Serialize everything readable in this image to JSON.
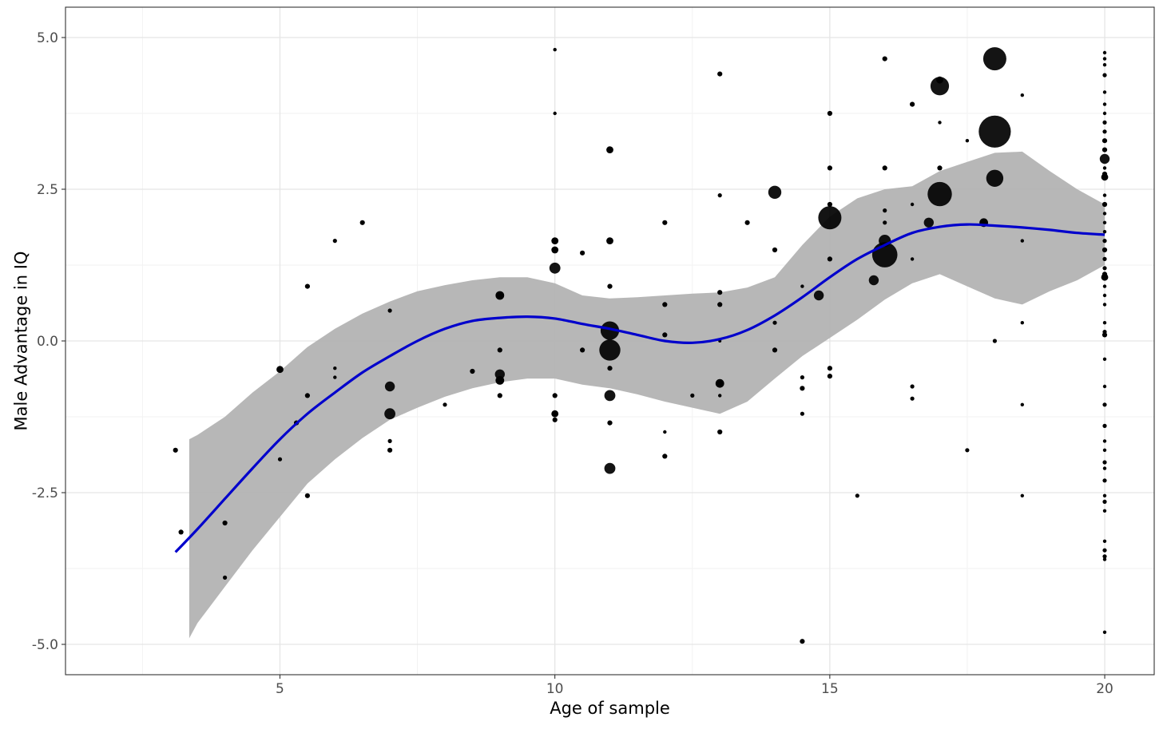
{
  "chart_data": {
    "type": "scatter",
    "title": "",
    "xlabel": "Age of sample",
    "ylabel": "Male Advantage in IQ",
    "xlim": [
      1.1,
      20.9
    ],
    "ylim": [
      -5.5,
      5.5
    ],
    "grid": true,
    "x_ticks": [
      {
        "value": 5,
        "label": "5"
      },
      {
        "value": 10,
        "label": "10"
      },
      {
        "value": 15,
        "label": "15"
      },
      {
        "value": 20,
        "label": "20"
      }
    ],
    "y_ticks": [
      {
        "value": -5,
        "label": "-5.0"
      },
      {
        "value": -2.5,
        "label": "-2.5"
      },
      {
        "value": 0,
        "label": "0.0"
      },
      {
        "value": 2.5,
        "label": "2.5"
      },
      {
        "value": 5,
        "label": "5.0"
      }
    ],
    "colors": {
      "points": "#000000",
      "smooth_line": "#0000cc",
      "confidence_band": "#b3b3b3",
      "grid_major": "#e5e5e5",
      "grid_minor": "#f2f2f2"
    },
    "points": [
      {
        "x": 3.1,
        "y": -1.8,
        "size": 1
      },
      {
        "x": 3.2,
        "y": -3.15,
        "size": 1
      },
      {
        "x": 4.0,
        "y": -3.0,
        "size": 1
      },
      {
        "x": 4.0,
        "y": -3.9,
        "size": 0.7
      },
      {
        "x": 5.0,
        "y": -0.47,
        "size": 2
      },
      {
        "x": 5.0,
        "y": -1.95,
        "size": 0.7
      },
      {
        "x": 5.3,
        "y": -1.35,
        "size": 1
      },
      {
        "x": 5.5,
        "y": 0.9,
        "size": 1
      },
      {
        "x": 5.5,
        "y": -0.9,
        "size": 1
      },
      {
        "x": 5.5,
        "y": -2.55,
        "size": 1
      },
      {
        "x": 6.0,
        "y": 1.65,
        "size": 0.7
      },
      {
        "x": 6.0,
        "y": -0.45,
        "size": 0.5
      },
      {
        "x": 6.0,
        "y": -0.6,
        "size": 0.5
      },
      {
        "x": 6.5,
        "y": 1.95,
        "size": 1
      },
      {
        "x": 7.0,
        "y": 0.5,
        "size": 0.7
      },
      {
        "x": 7.0,
        "y": -0.75,
        "size": 4
      },
      {
        "x": 7.0,
        "y": -1.2,
        "size": 5
      },
      {
        "x": 7.0,
        "y": -1.65,
        "size": 0.7
      },
      {
        "x": 7.0,
        "y": -1.8,
        "size": 1
      },
      {
        "x": 8.0,
        "y": -1.05,
        "size": 0.7
      },
      {
        "x": 8.5,
        "y": -0.5,
        "size": 1
      },
      {
        "x": 9.0,
        "y": 0.75,
        "size": 3
      },
      {
        "x": 9.0,
        "y": -0.15,
        "size": 1
      },
      {
        "x": 9.0,
        "y": -0.55,
        "size": 4
      },
      {
        "x": 9.0,
        "y": -0.65,
        "size": 3
      },
      {
        "x": 9.0,
        "y": -0.9,
        "size": 1
      },
      {
        "x": 10.0,
        "y": 4.8,
        "size": 0.5
      },
      {
        "x": 10.0,
        "y": 3.75,
        "size": 0.5
      },
      {
        "x": 10.0,
        "y": 1.65,
        "size": 2
      },
      {
        "x": 10.0,
        "y": 1.5,
        "size": 2
      },
      {
        "x": 10.0,
        "y": 1.2,
        "size": 5
      },
      {
        "x": 10.0,
        "y": -0.9,
        "size": 1
      },
      {
        "x": 10.0,
        "y": -1.2,
        "size": 2
      },
      {
        "x": 10.0,
        "y": -1.3,
        "size": 1
      },
      {
        "x": 10.5,
        "y": 1.45,
        "size": 1
      },
      {
        "x": 10.5,
        "y": -0.15,
        "size": 1
      },
      {
        "x": 11.0,
        "y": 3.15,
        "size": 2
      },
      {
        "x": 11.0,
        "y": 1.65,
        "size": 2
      },
      {
        "x": 11.0,
        "y": 0.9,
        "size": 1
      },
      {
        "x": 11.0,
        "y": 0.17,
        "size": 14
      },
      {
        "x": 11.0,
        "y": -0.15,
        "size": 18
      },
      {
        "x": 11.0,
        "y": -0.45,
        "size": 1
      },
      {
        "x": 11.0,
        "y": -0.9,
        "size": 5
      },
      {
        "x": 11.0,
        "y": -1.35,
        "size": 1
      },
      {
        "x": 11.0,
        "y": -2.1,
        "size": 5
      },
      {
        "x": 12.0,
        "y": 1.95,
        "size": 1
      },
      {
        "x": 12.0,
        "y": 0.6,
        "size": 1
      },
      {
        "x": 12.0,
        "y": 0.1,
        "size": 1
      },
      {
        "x": 12.0,
        "y": -1.5,
        "size": 0.5
      },
      {
        "x": 12.0,
        "y": -1.9,
        "size": 1
      },
      {
        "x": 12.5,
        "y": -0.9,
        "size": 0.7
      },
      {
        "x": 13.0,
        "y": 4.4,
        "size": 1
      },
      {
        "x": 13.0,
        "y": 2.4,
        "size": 0.7
      },
      {
        "x": 13.0,
        "y": 0.8,
        "size": 1
      },
      {
        "x": 13.0,
        "y": 0.6,
        "size": 1
      },
      {
        "x": 13.0,
        "y": 0.0,
        "size": 0.4
      },
      {
        "x": 13.0,
        "y": -0.7,
        "size": 3
      },
      {
        "x": 13.0,
        "y": -0.9,
        "size": 0.5
      },
      {
        "x": 13.0,
        "y": -1.5,
        "size": 1
      },
      {
        "x": 13.5,
        "y": 1.95,
        "size": 1
      },
      {
        "x": 14.0,
        "y": 2.45,
        "size": 7
      },
      {
        "x": 14.0,
        "y": 1.5,
        "size": 1
      },
      {
        "x": 14.0,
        "y": 0.3,
        "size": 0.7
      },
      {
        "x": 14.0,
        "y": -0.15,
        "size": 1
      },
      {
        "x": 14.5,
        "y": 0.9,
        "size": 0.5
      },
      {
        "x": 14.5,
        "y": -0.6,
        "size": 0.7
      },
      {
        "x": 14.5,
        "y": -0.78,
        "size": 1
      },
      {
        "x": 14.5,
        "y": -1.2,
        "size": 0.7
      },
      {
        "x": 14.5,
        "y": -4.95,
        "size": 1
      },
      {
        "x": 14.8,
        "y": 0.75,
        "size": 4
      },
      {
        "x": 15.0,
        "y": 3.75,
        "size": 1
      },
      {
        "x": 15.0,
        "y": 2.85,
        "size": 1
      },
      {
        "x": 15.0,
        "y": 2.25,
        "size": 1
      },
      {
        "x": 15.0,
        "y": 2.03,
        "size": 22
      },
      {
        "x": 15.0,
        "y": 1.35,
        "size": 1
      },
      {
        "x": 15.0,
        "y": -0.45,
        "size": 1
      },
      {
        "x": 15.0,
        "y": -0.58,
        "size": 1
      },
      {
        "x": 15.5,
        "y": -2.55,
        "size": 0.7
      },
      {
        "x": 15.8,
        "y": 1.0,
        "size": 4
      },
      {
        "x": 16.0,
        "y": 4.65,
        "size": 1
      },
      {
        "x": 16.0,
        "y": 2.85,
        "size": 1
      },
      {
        "x": 16.0,
        "y": 2.15,
        "size": 0.7
      },
      {
        "x": 16.0,
        "y": 1.95,
        "size": 0.7
      },
      {
        "x": 16.0,
        "y": 1.65,
        "size": 6
      },
      {
        "x": 16.0,
        "y": 1.42,
        "size": 26
      },
      {
        "x": 16.5,
        "y": 3.9,
        "size": 1
      },
      {
        "x": 16.5,
        "y": 2.25,
        "size": 0.5
      },
      {
        "x": 16.5,
        "y": 1.35,
        "size": 0.5
      },
      {
        "x": 16.5,
        "y": -0.75,
        "size": 0.7
      },
      {
        "x": 16.5,
        "y": -0.95,
        "size": 0.7
      },
      {
        "x": 16.8,
        "y": 1.95,
        "size": 4
      },
      {
        "x": 17.0,
        "y": 4.3,
        "size": 2
      },
      {
        "x": 17.0,
        "y": 4.2,
        "size": 14
      },
      {
        "x": 17.0,
        "y": 3.6,
        "size": 0.5
      },
      {
        "x": 17.0,
        "y": 2.85,
        "size": 1
      },
      {
        "x": 17.0,
        "y": 2.42,
        "size": 24
      },
      {
        "x": 17.5,
        "y": 3.3,
        "size": 0.5
      },
      {
        "x": 17.5,
        "y": -1.8,
        "size": 0.7
      },
      {
        "x": 17.8,
        "y": 1.95,
        "size": 3
      },
      {
        "x": 18.0,
        "y": 4.65,
        "size": 22
      },
      {
        "x": 18.0,
        "y": 3.45,
        "size": 42
      },
      {
        "x": 18.0,
        "y": 2.68,
        "size": 12
      },
      {
        "x": 18.0,
        "y": 0.0,
        "size": 0.7
      },
      {
        "x": 18.5,
        "y": 4.05,
        "size": 0.5
      },
      {
        "x": 18.5,
        "y": 1.65,
        "size": 0.5
      },
      {
        "x": 18.5,
        "y": 0.3,
        "size": 0.5
      },
      {
        "x": 18.5,
        "y": -1.05,
        "size": 0.5
      },
      {
        "x": 18.5,
        "y": -2.55,
        "size": 0.5
      },
      {
        "x": 20.0,
        "y": 4.75,
        "size": 0.5
      },
      {
        "x": 20.0,
        "y": 4.65,
        "size": 0.5
      },
      {
        "x": 20.0,
        "y": 4.55,
        "size": 0.5
      },
      {
        "x": 20.0,
        "y": 4.38,
        "size": 0.7
      },
      {
        "x": 20.0,
        "y": 4.1,
        "size": 0.5
      },
      {
        "x": 20.0,
        "y": 3.9,
        "size": 0.5
      },
      {
        "x": 20.0,
        "y": 3.75,
        "size": 0.5
      },
      {
        "x": 20.0,
        "y": 3.6,
        "size": 0.7
      },
      {
        "x": 20.0,
        "y": 3.45,
        "size": 0.7
      },
      {
        "x": 20.0,
        "y": 3.3,
        "size": 1
      },
      {
        "x": 20.0,
        "y": 3.15,
        "size": 1
      },
      {
        "x": 20.0,
        "y": 3.0,
        "size": 4
      },
      {
        "x": 20.0,
        "y": 2.85,
        "size": 0.5
      },
      {
        "x": 20.0,
        "y": 2.75,
        "size": 1
      },
      {
        "x": 20.0,
        "y": 2.7,
        "size": 2
      },
      {
        "x": 20.0,
        "y": 2.4,
        "size": 0.5
      },
      {
        "x": 20.0,
        "y": 2.25,
        "size": 1
      },
      {
        "x": 20.0,
        "y": 2.1,
        "size": 0.5
      },
      {
        "x": 20.0,
        "y": 1.95,
        "size": 0.5
      },
      {
        "x": 20.0,
        "y": 1.8,
        "size": 0.5
      },
      {
        "x": 20.0,
        "y": 1.65,
        "size": 0.7
      },
      {
        "x": 20.0,
        "y": 1.5,
        "size": 1
      },
      {
        "x": 20.0,
        "y": 1.35,
        "size": 0.7
      },
      {
        "x": 20.0,
        "y": 1.2,
        "size": 0.7
      },
      {
        "x": 20.0,
        "y": 1.1,
        "size": 1
      },
      {
        "x": 20.0,
        "y": 1.05,
        "size": 2
      },
      {
        "x": 20.0,
        "y": 0.9,
        "size": 0.5
      },
      {
        "x": 20.0,
        "y": 0.75,
        "size": 0.5
      },
      {
        "x": 20.0,
        "y": 0.6,
        "size": 0.5
      },
      {
        "x": 20.0,
        "y": 0.3,
        "size": 0.5
      },
      {
        "x": 20.0,
        "y": 0.15,
        "size": 0.7
      },
      {
        "x": 20.0,
        "y": 0.1,
        "size": 1
      },
      {
        "x": 20.0,
        "y": -0.3,
        "size": 0.5
      },
      {
        "x": 20.0,
        "y": -0.75,
        "size": 0.5
      },
      {
        "x": 20.0,
        "y": -1.05,
        "size": 0.7
      },
      {
        "x": 20.0,
        "y": -1.4,
        "size": 0.7
      },
      {
        "x": 20.0,
        "y": -1.65,
        "size": 0.5
      },
      {
        "x": 20.0,
        "y": -1.8,
        "size": 0.5
      },
      {
        "x": 20.0,
        "y": -2.0,
        "size": 0.7
      },
      {
        "x": 20.0,
        "y": -2.1,
        "size": 0.5
      },
      {
        "x": 20.0,
        "y": -2.3,
        "size": 0.7
      },
      {
        "x": 20.0,
        "y": -2.55,
        "size": 0.5
      },
      {
        "x": 20.0,
        "y": -2.65,
        "size": 0.7
      },
      {
        "x": 20.0,
        "y": -2.8,
        "size": 0.5
      },
      {
        "x": 20.0,
        "y": -3.3,
        "size": 0.5
      },
      {
        "x": 20.0,
        "y": -3.45,
        "size": 0.7
      },
      {
        "x": 20.0,
        "y": -3.55,
        "size": 0.7
      },
      {
        "x": 20.0,
        "y": -3.6,
        "size": 0.5
      },
      {
        "x": 20.0,
        "y": -4.8,
        "size": 0.5
      }
    ],
    "smooth_fit": {
      "method": "loess",
      "x": [
        3.1,
        3.5,
        4.0,
        4.5,
        5.0,
        5.5,
        6.0,
        6.5,
        7.0,
        7.5,
        8.0,
        8.5,
        9.0,
        9.5,
        10.0,
        10.5,
        11.0,
        11.5,
        12.0,
        12.5,
        13.0,
        13.5,
        14.0,
        14.5,
        15.0,
        15.5,
        16.0,
        16.5,
        17.0,
        17.5,
        18.0,
        18.5,
        19.0,
        19.5,
        20.0
      ],
      "y": [
        -3.48,
        -3.1,
        -2.6,
        -2.1,
        -1.62,
        -1.2,
        -0.85,
        -0.52,
        -0.25,
        0.0,
        0.2,
        0.33,
        0.38,
        0.4,
        0.37,
        0.28,
        0.2,
        0.1,
        0.0,
        -0.03,
        0.03,
        0.18,
        0.42,
        0.72,
        1.05,
        1.35,
        1.58,
        1.78,
        1.88,
        1.92,
        1.9,
        1.87,
        1.83,
        1.78,
        1.75
      ]
    },
    "band": {
      "x": [
        3.35,
        3.5,
        4.0,
        4.5,
        5.0,
        5.5,
        6.0,
        6.5,
        7.0,
        7.5,
        8.0,
        8.5,
        9.0,
        9.5,
        10.0,
        10.5,
        11.0,
        11.5,
        12.0,
        12.5,
        13.0,
        13.5,
        14.0,
        14.5,
        15.0,
        15.5,
        16.0,
        16.5,
        17.0,
        17.5,
        18.0,
        18.5,
        19.0,
        19.5,
        20.0
      ],
      "lower": [
        -4.9,
        -4.65,
        -4.05,
        -3.45,
        -2.9,
        -2.35,
        -1.95,
        -1.6,
        -1.3,
        -1.1,
        -0.92,
        -0.78,
        -0.68,
        -0.62,
        -0.62,
        -0.72,
        -0.78,
        -0.88,
        -1.0,
        -1.1,
        -1.2,
        -1.0,
        -0.62,
        -0.25,
        0.05,
        0.35,
        0.68,
        0.95,
        1.1,
        0.9,
        0.7,
        0.6,
        0.82,
        1.0,
        1.25
      ],
      "upper": [
        -1.62,
        -1.55,
        -1.25,
        -0.85,
        -0.5,
        -0.1,
        0.2,
        0.45,
        0.65,
        0.82,
        0.92,
        1.0,
        1.05,
        1.05,
        0.95,
        0.75,
        0.7,
        0.72,
        0.75,
        0.78,
        0.8,
        0.88,
        1.05,
        1.58,
        2.05,
        2.35,
        2.5,
        2.55,
        2.8,
        2.95,
        3.1,
        3.12,
        2.8,
        2.5,
        2.25
      ]
    }
  }
}
